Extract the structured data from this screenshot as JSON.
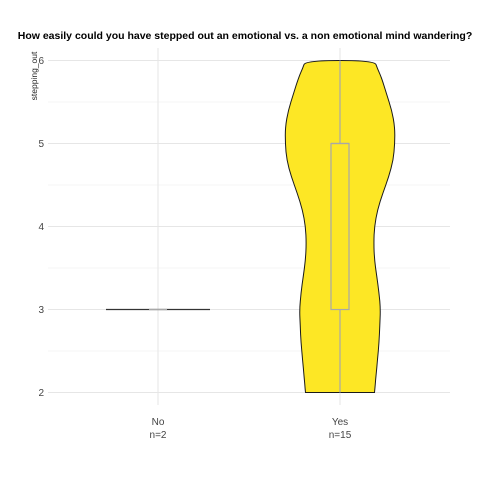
{
  "chart_data": {
    "type": "violin",
    "title": "How easily could you have stepped out an emotional vs. a non emotional mind wandering?",
    "xlabel": "",
    "ylabel": "stepping_out",
    "categories": [
      "No",
      "Yes"
    ],
    "counts": [
      "n=2",
      "n=15"
    ],
    "ylim": [
      1.85,
      6.15
    ],
    "yticks": [
      2,
      3,
      4,
      5,
      6
    ],
    "grid": true,
    "legend": "none",
    "groups": [
      {
        "category": "No",
        "n_label": "n=2",
        "values_range": [
          3,
          3
        ],
        "box": {
          "min": 3,
          "q1": 3,
          "median": 3,
          "q3": 3,
          "max": 3
        },
        "density": [],
        "fill": "#ffffff"
      },
      {
        "category": "Yes",
        "n_label": "n=15",
        "values_range": [
          2,
          6
        ],
        "box": {
          "min": 2,
          "q1": 3,
          "median": 5,
          "q3": 5,
          "max": 6
        },
        "density": [
          [
            2.0,
            0.46
          ],
          [
            2.1,
            0.47
          ],
          [
            2.2,
            0.48
          ],
          [
            2.4,
            0.5
          ],
          [
            2.6,
            0.52
          ],
          [
            2.8,
            0.53
          ],
          [
            3.0,
            0.54
          ],
          [
            3.2,
            0.52
          ],
          [
            3.4,
            0.49
          ],
          [
            3.6,
            0.46
          ],
          [
            3.8,
            0.45
          ],
          [
            4.0,
            0.46
          ],
          [
            4.2,
            0.5
          ],
          [
            4.4,
            0.57
          ],
          [
            4.6,
            0.65
          ],
          [
            4.8,
            0.71
          ],
          [
            5.0,
            0.73
          ],
          [
            5.2,
            0.73
          ],
          [
            5.4,
            0.69
          ],
          [
            5.6,
            0.62
          ],
          [
            5.8,
            0.55
          ],
          [
            5.9,
            0.5
          ],
          [
            6.0,
            0.46
          ]
        ],
        "fill": "#fde725"
      }
    ]
  }
}
